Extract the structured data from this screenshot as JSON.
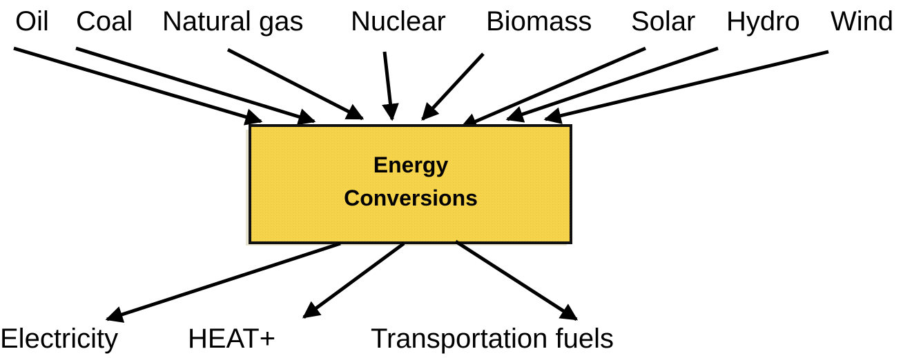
{
  "sources": [
    "Oil",
    "Coal",
    "Natural gas",
    "Nuclear",
    "Biomass",
    "Solar",
    "Hydro",
    "Wind"
  ],
  "center": {
    "lines": [
      "Energy",
      "Conversions"
    ]
  },
  "outputs": [
    "Electricity",
    "HEAT+",
    "Transportation fuels"
  ]
}
